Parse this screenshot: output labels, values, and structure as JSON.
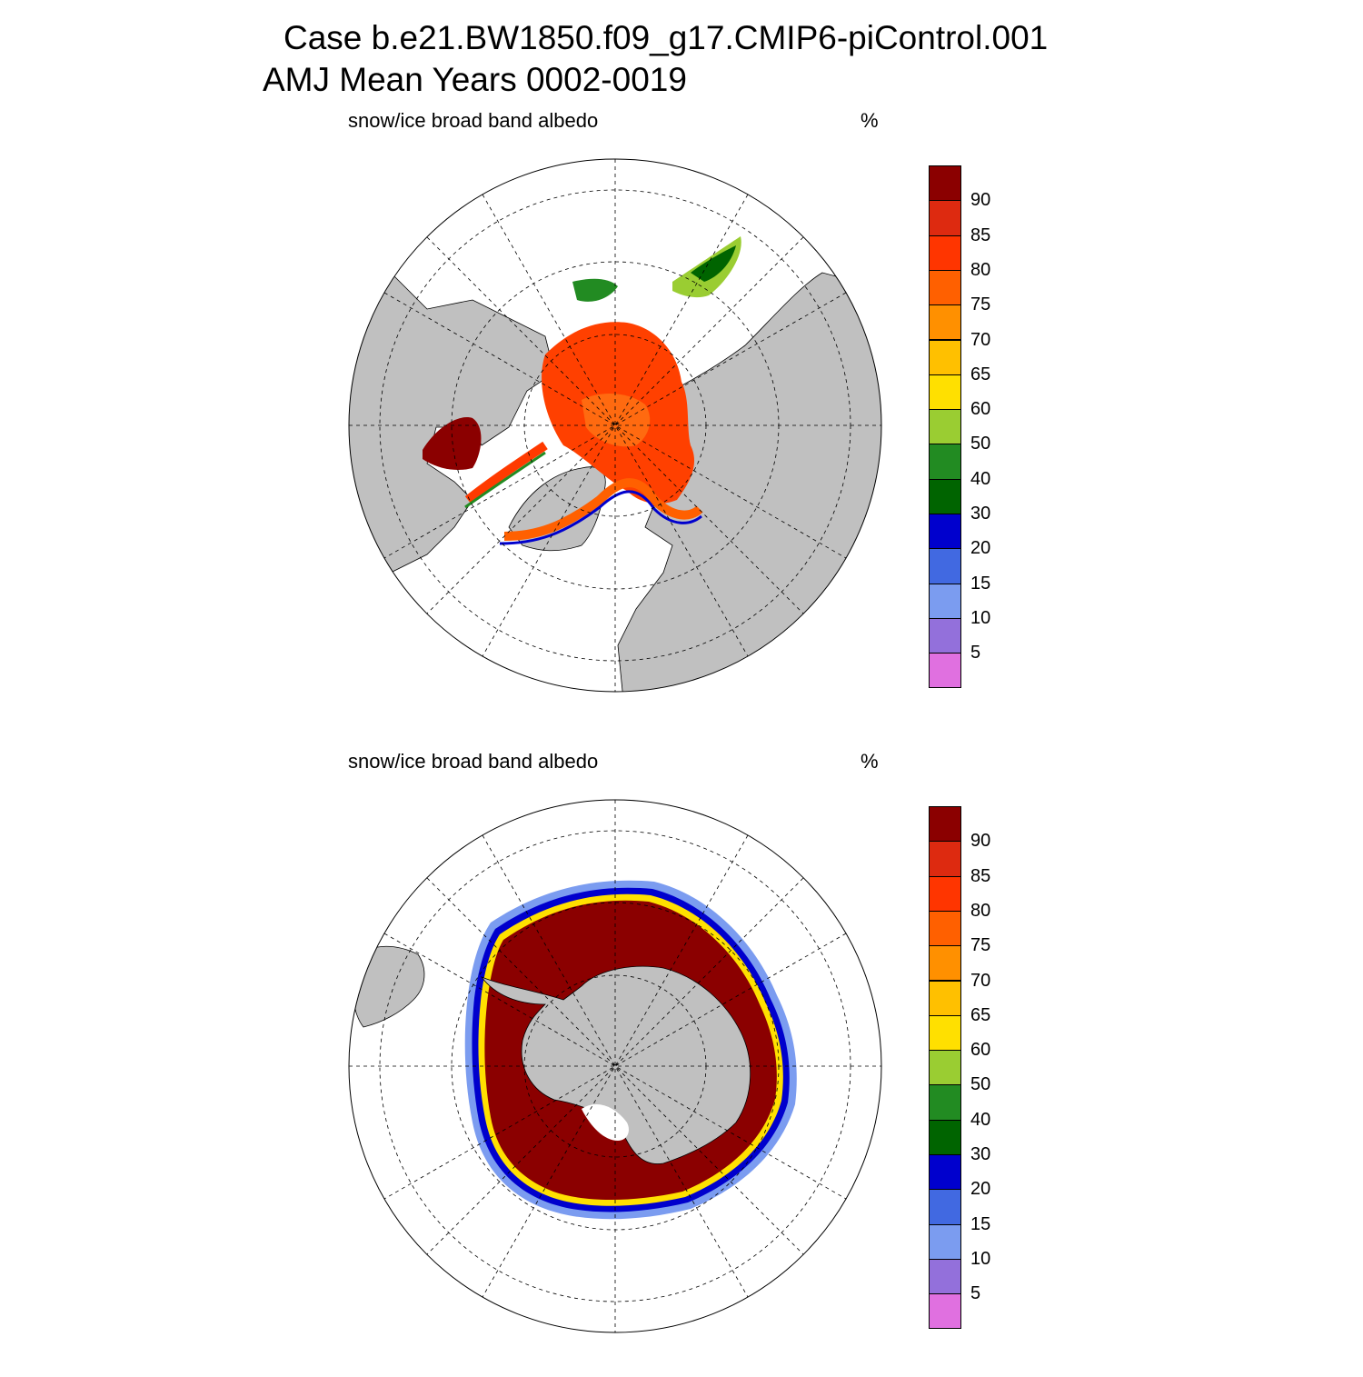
{
  "title": {
    "line1": "Case b.e21.BW1850.f09_g17.CMIP6-piControl.001",
    "line2": "AMJ Mean    Years 0002-0019"
  },
  "panels": [
    {
      "hemisphere": "north",
      "variable_name": "snow/ice broad band albedo",
      "units": "%"
    },
    {
      "hemisphere": "south",
      "variable_name": "snow/ice broad band albedo",
      "units": "%"
    }
  ],
  "colorbar": {
    "levels": [
      "5",
      "10",
      "15",
      "20",
      "30",
      "40",
      "50",
      "60",
      "65",
      "70",
      "75",
      "80",
      "85",
      "90"
    ],
    "colors": [
      "#e070e0",
      "#9370db",
      "#7b9cf0",
      "#4169e1",
      "#0000cd",
      "#006400",
      "#228b22",
      "#9acd32",
      "#ffe000",
      "#ffc000",
      "#ff9000",
      "#ff6000",
      "#ff3500",
      "#dd2a10",
      "#8b0000"
    ]
  },
  "map_colors": {
    "land": "#c0c0c0",
    "ocean": "#ffffff",
    "ice_core_south": "#8b0000",
    "ice_core_north": "#ff3a00"
  }
}
